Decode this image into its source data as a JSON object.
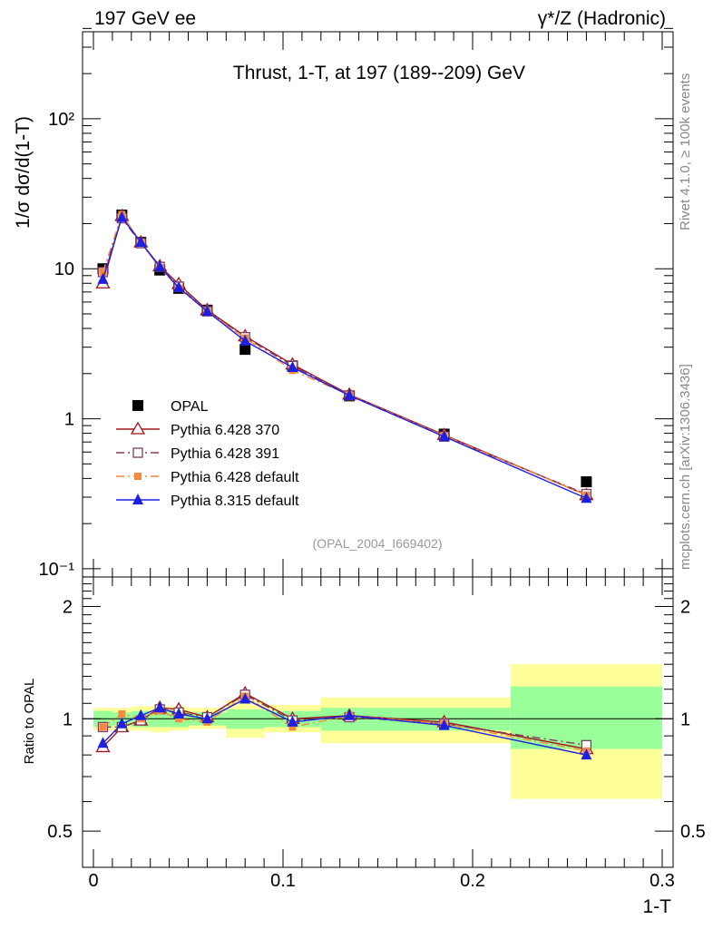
{
  "header": {
    "left": "197 GeV ee",
    "right_gamma": "γ",
    "right_rest": "*/Z (Hadronic)"
  },
  "side_labels": {
    "rivet": "Rivet 4.1.0, ≥ 100k events",
    "site": "mcplots.cern.ch [arXiv:1306.3436]"
  },
  "colors": {
    "opal": "#000000",
    "py370": "#a0141e",
    "py391": "#7f3f5f",
    "py6def": "#f58a3c",
    "py8def": "#1f1fe0",
    "band_inner": "#99ff99",
    "band_outer": "#ffff99"
  },
  "chart_data": [
    {
      "type": "line",
      "panel": "main",
      "title": "Thrust, 1-T, at 197 (189--209) GeV",
      "ylabel": "1/σ  dσ/d(1-T)",
      "xlabel": "1-T",
      "yscale": "log",
      "ylim": [
        0.08,
        400
      ],
      "xlim": [
        -0.006,
        0.3
      ],
      "ytick_labels": [
        "10⁻¹",
        "1",
        "10",
        "10²"
      ],
      "analysis_tag": "(OPAL_2004_I669402)",
      "legend_position": "lower-left",
      "x": [
        0.005,
        0.015,
        0.025,
        0.035,
        0.045,
        0.06,
        0.08,
        0.105,
        0.135,
        0.185,
        0.26
      ],
      "series": [
        {
          "name": "OPAL",
          "key": "opal",
          "marker": "filled-square",
          "line": "none",
          "values": [
            10.0,
            22.8,
            15.0,
            9.8,
            7.4,
            5.3,
            2.9,
            2.25,
            1.42,
            0.79,
            0.38
          ]
        },
        {
          "name": "Pythia 6.428 370",
          "key": "py370",
          "marker": "open-triangle",
          "line": "solid",
          "values": [
            8.0,
            22.5,
            15.0,
            10.4,
            7.9,
            5.3,
            3.55,
            2.3,
            1.45,
            0.78,
            0.31
          ]
        },
        {
          "name": "Pythia 6.428 391",
          "key": "py391",
          "marker": "open-square",
          "line": "dashdot",
          "values": [
            9.5,
            21.7,
            14.8,
            10.3,
            7.6,
            5.2,
            3.5,
            2.25,
            1.43,
            0.76,
            0.315
          ]
        },
        {
          "name": "Pythia 6.428 default",
          "key": "py6def",
          "marker": "filled-square",
          "line": "dashdot",
          "values": [
            9.5,
            23.0,
            15.0,
            10.2,
            7.4,
            5.2,
            3.45,
            2.1,
            1.44,
            0.77,
            0.31
          ]
        },
        {
          "name": "Pythia 8.315 default",
          "key": "py8def",
          "marker": "filled-triangle",
          "line": "solid",
          "values": [
            8.5,
            22.0,
            15.0,
            10.3,
            7.5,
            5.2,
            3.3,
            2.2,
            1.43,
            0.76,
            0.295
          ]
        }
      ]
    },
    {
      "type": "line",
      "panel": "ratio",
      "ylabel": "Ratio to OPAL",
      "xlabel": "1-T",
      "yscale": "log",
      "ylim": [
        0.4,
        2.4
      ],
      "xlim": [
        -0.006,
        0.3
      ],
      "xtick_labels": [
        "0",
        "0.1",
        "0.2",
        "0.3"
      ],
      "ytick_labels": [
        "0.5",
        "1",
        "2"
      ],
      "x": [
        0.005,
        0.015,
        0.025,
        0.035,
        0.045,
        0.06,
        0.08,
        0.105,
        0.135,
        0.185,
        0.26
      ],
      "bins": [
        [
          0.0,
          0.01
        ],
        [
          0.01,
          0.02
        ],
        [
          0.02,
          0.03
        ],
        [
          0.03,
          0.04
        ],
        [
          0.04,
          0.05
        ],
        [
          0.05,
          0.07
        ],
        [
          0.07,
          0.09
        ],
        [
          0.09,
          0.12
        ],
        [
          0.12,
          0.15
        ],
        [
          0.15,
          0.22
        ],
        [
          0.22,
          0.3
        ]
      ],
      "band_inner": [
        [
          0.95,
          1.05
        ],
        [
          0.96,
          1.04
        ],
        [
          0.95,
          1.05
        ],
        [
          0.95,
          1.05
        ],
        [
          0.95,
          1.05
        ],
        [
          0.96,
          1.04
        ],
        [
          0.94,
          1.06
        ],
        [
          0.95,
          1.05
        ],
        [
          0.93,
          1.07
        ],
        [
          0.93,
          1.07
        ],
        [
          0.83,
          1.22
        ]
      ],
      "band_outer": [
        [
          0.93,
          1.07
        ],
        [
          0.93,
          1.07
        ],
        [
          0.93,
          1.08
        ],
        [
          0.92,
          1.08
        ],
        [
          0.93,
          1.08
        ],
        [
          0.94,
          1.07
        ],
        [
          0.89,
          1.12
        ],
        [
          0.92,
          1.09
        ],
        [
          0.86,
          1.14
        ],
        [
          0.86,
          1.14
        ],
        [
          0.61,
          1.4
        ]
      ],
      "series": [
        {
          "name": "Pythia 6.428 370",
          "key": "py370",
          "values": [
            0.84,
            0.95,
            0.99,
            1.07,
            1.06,
            1.01,
            1.17,
            1.0,
            1.02,
            0.98,
            0.83
          ]
        },
        {
          "name": "Pythia 6.428 391",
          "key": "py391",
          "values": [
            0.95,
            0.95,
            0.99,
            1.06,
            1.04,
            1.01,
            1.16,
            0.99,
            1.01,
            0.97,
            0.85
          ]
        },
        {
          "name": "Pythia 6.428 default",
          "key": "py6def",
          "values": [
            0.95,
            1.03,
            1.0,
            1.05,
            1.0,
            0.98,
            1.15,
            0.95,
            1.02,
            0.97,
            0.82
          ]
        },
        {
          "name": "Pythia 8.315 default",
          "key": "py8def",
          "values": [
            0.86,
            0.97,
            1.02,
            1.07,
            1.03,
            1.0,
            1.13,
            0.98,
            1.02,
            0.96,
            0.8
          ]
        }
      ]
    }
  ]
}
